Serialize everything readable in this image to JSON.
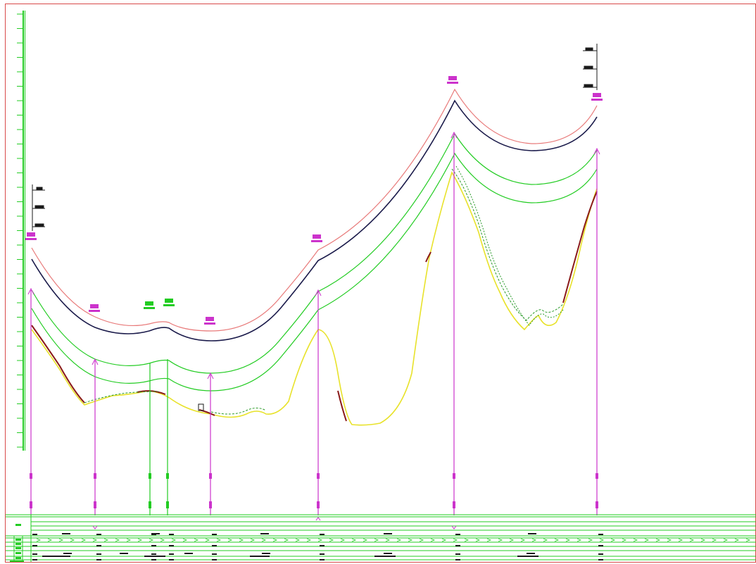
{
  "drawing": {
    "kind": "longitudinal profile sheet (CAD)",
    "colors": {
      "background": "#ffffff",
      "frame": "#d94a4a",
      "scale_bar": "#22cc22",
      "grade_offset": "#e87a7a",
      "design_grade": "#1a1a4a",
      "bottom_lines": "#22cc22",
      "ground_yellow": "#e8e22a",
      "ground_dark_red": "#8a1a1a",
      "ground_green_dashed": "#2a9a2a",
      "vertical_markers": "#cc33cc",
      "band_lines": "#22cc22",
      "band_text": "#1a1a1a"
    },
    "icons": [
      "vertical-marker-arrow-icon",
      "pvi-tag-icon",
      "level-mark-icon"
    ]
  }
}
